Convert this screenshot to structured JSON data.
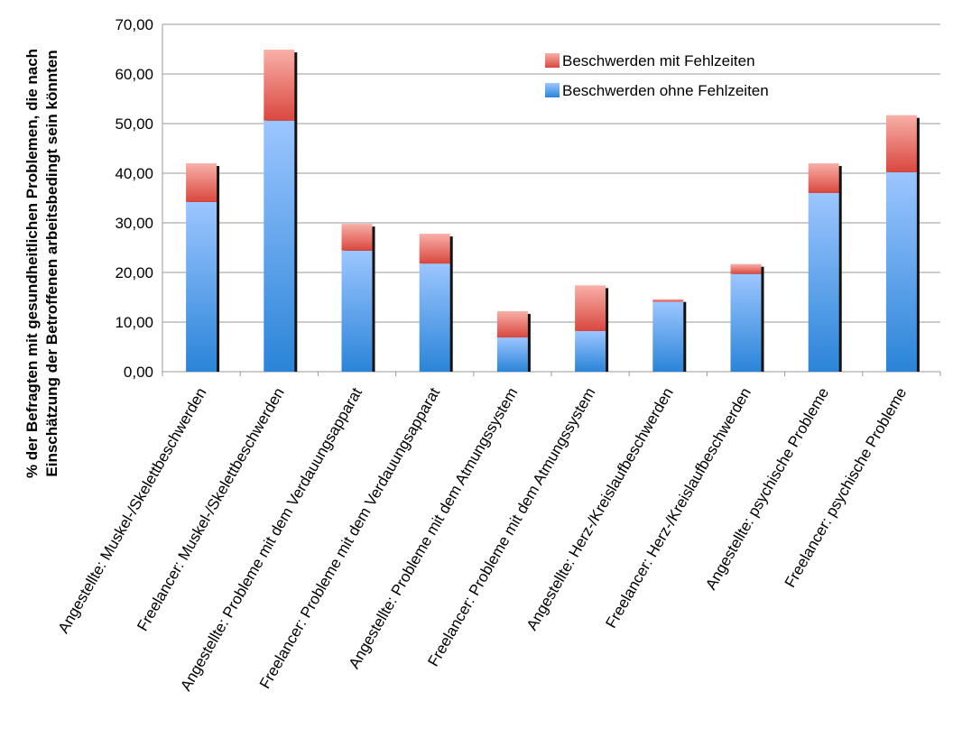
{
  "chart_data": {
    "type": "bar",
    "stacked": true,
    "title": "",
    "xlabel": "",
    "ylabel_lines": [
      "% der Befragten mit  gesundheitlichen Problemen, die nach",
      "Einschätzung der Betroffenen arbeitsbedingt sein könnten"
    ],
    "ylim": [
      0,
      70
    ],
    "yticks": [
      "0,00",
      "10,00",
      "20,00",
      "30,00",
      "40,00",
      "50,00",
      "60,00",
      "70,00"
    ],
    "ytick_values": [
      0,
      10,
      20,
      30,
      40,
      50,
      60,
      70
    ],
    "grid": true,
    "legend_position": "top-right",
    "categories": [
      "Angestellte: Muskel-/Skelettbeschwerden",
      "Freelancer: Muskel-/Skelettbeschwerden",
      "Angestellte: Probleme mit dem Verdauungsapparat",
      "Freelancer: Probleme mit dem Verdauungsapparat",
      "Angestellte: Probleme mit dem Atmungssystem",
      "Freelancer: Probleme mit dem Atmungssystem",
      "Angestellte: Herz-/Kreislaufbeschwerden",
      "Freelancer: Herz-/Kreislaufbeschwerden",
      "Angestellte: psychische Probleme",
      "Freelancer: psychische Probleme"
    ],
    "series": [
      {
        "name": "Beschwerden ohne Fehlzeiten",
        "color": "#5fa0e8",
        "values": [
          34.2,
          50.6,
          24.4,
          21.8,
          6.9,
          8.2,
          14.1,
          19.7,
          36.0,
          40.2
        ]
      },
      {
        "name": "Beschwerden mit Fehlzeiten",
        "color": "#e8605a",
        "values": [
          7.8,
          14.3,
          5.4,
          6.0,
          5.3,
          9.2,
          0.5,
          2.0,
          6.0,
          11.5
        ]
      }
    ]
  }
}
